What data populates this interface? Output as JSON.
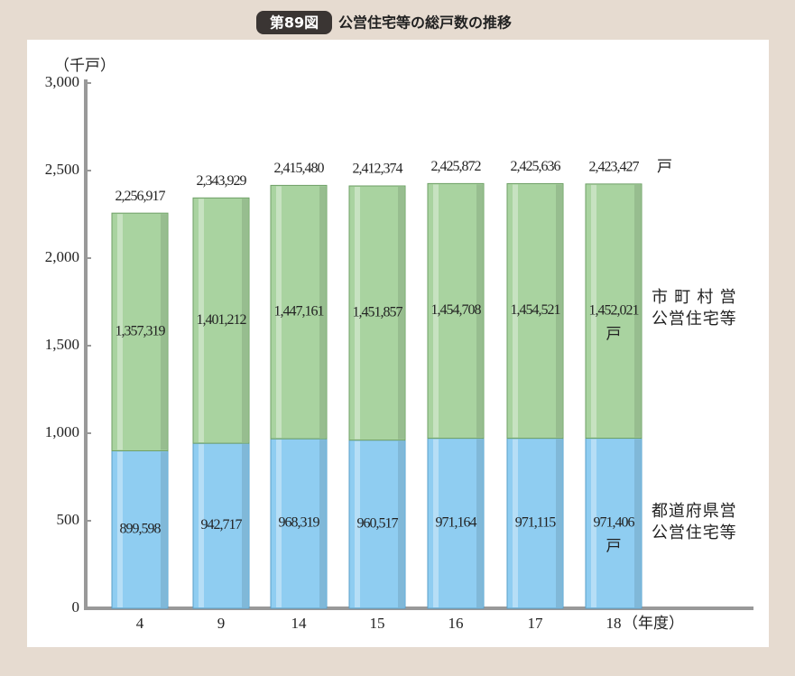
{
  "chart_data": {
    "type": "stacked_bar",
    "title_badge": "第89図",
    "title": "公営住宅等の総戸数の推移",
    "y_axis_label": "（千戸）",
    "x_axis_label": "（年度）",
    "unit_label": "戸",
    "categories": [
      "4",
      "9",
      "14",
      "15",
      "16",
      "17",
      "18"
    ],
    "series": [
      {
        "name": "都道府県営\n公営住宅等",
        "color": "#8fcdf1",
        "values": [
          899.598,
          942.717,
          968.319,
          960.517,
          971.164,
          971.115,
          971.406
        ],
        "value_labels": [
          "899,598",
          "942,717",
          "968,319",
          "960,517",
          "971,164",
          "971,115",
          "971,406"
        ]
      },
      {
        "name": "市町村営\n公営住宅等",
        "color": "#a9d3a0",
        "values": [
          1357.319,
          1401.212,
          1447.161,
          1451.857,
          1454.708,
          1454.521,
          1452.021
        ],
        "value_labels": [
          "1,357,319",
          "1,401,212",
          "1,447,161",
          "1,451,857",
          "1,454,708",
          "1,454,521",
          "1,452,021"
        ]
      }
    ],
    "totals": {
      "values": [
        2256.917,
        2343.929,
        2415.48,
        2412.374,
        2425.872,
        2425.636,
        2423.427
      ],
      "value_labels": [
        "2,256,917",
        "2,343,929",
        "2,415,480",
        "2,412,374",
        "2,425,872",
        "2,425,636",
        "2,423,427"
      ]
    },
    "ylim": [
      0,
      3000
    ],
    "yticks": [
      0,
      500,
      {
        "value": 1000,
        "label": "1,000"
      },
      {
        "value": 1500,
        "label": "1,500"
      },
      {
        "value": 2000,
        "label": "2,000"
      },
      {
        "value": 2500,
        "label": "2,500"
      },
      {
        "value": 3000,
        "label": "3,000"
      }
    ]
  }
}
